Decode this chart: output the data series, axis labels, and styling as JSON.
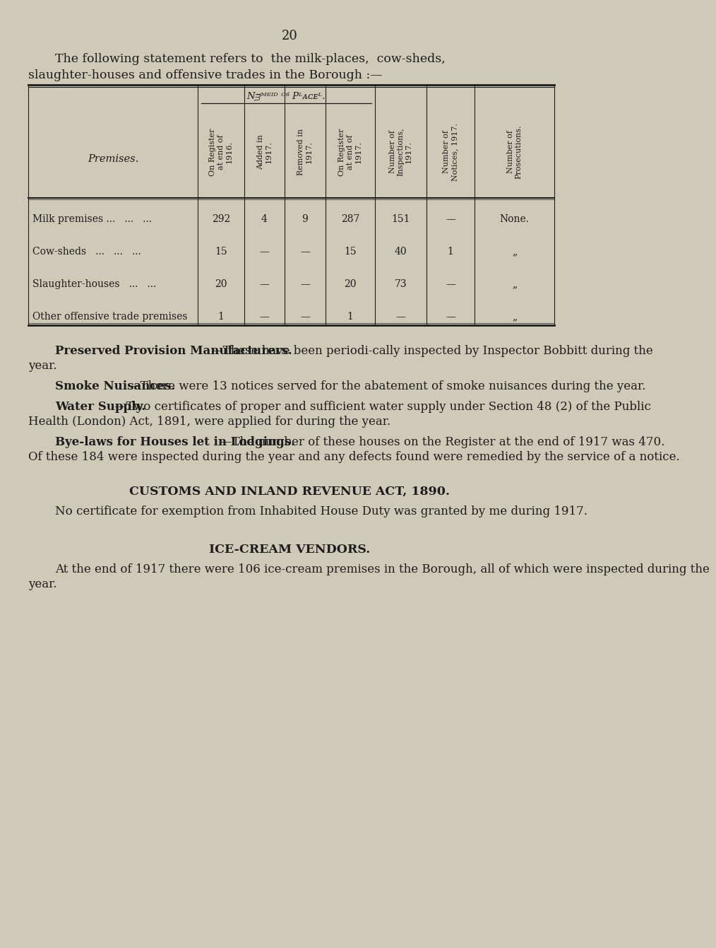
{
  "bg": "#cfc9b8",
  "tc": "#1c1c1c",
  "page_number": "20",
  "intro_line1": "The following statement refers to  the milk-places,  cow-sheds,",
  "intro_line2": "slaughter-houses and offensive trades in the Borough :—",
  "table": {
    "col_header_group": "Number of Places.",
    "col_headers": [
      "On Register\nat end of\n1916.",
      "Added in\n1917.",
      "Removed in\n1917.",
      "On Register\nat end of\n1917.",
      "Number of\nInspections,\n1917.",
      "Number of\nNotices, 1917.",
      "Number of\nProsecutions."
    ],
    "row_header": "Premises.",
    "rows": [
      {
        "label": "Milk premises ...   ...   ...",
        "values": [
          "292",
          "4",
          "9",
          "287",
          "151",
          "—",
          "None."
        ]
      },
      {
        "label": "Cow-sheds   ...   ...   ...",
        "values": [
          "15",
          "—",
          "—",
          "15",
          "40",
          "1",
          "„"
        ]
      },
      {
        "label": "Slaughter-houses   ...   ...",
        "values": [
          "20",
          "—",
          "—",
          "20",
          "73",
          "—",
          "„"
        ]
      },
      {
        "label": "Other offensive trade premises",
        "values": [
          "1",
          "—",
          "—",
          "1",
          "—",
          "—",
          "„"
        ]
      }
    ]
  },
  "paragraphs": [
    {
      "bold": "Preserved Provision Manufacturers.",
      "normal": "—These have been periodi­cally inspected by Inspector Bobbitt during the year."
    },
    {
      "bold": "Smoke Nuisances.",
      "normal": "—There were 13 notices served for the abatement of smoke nuisances during the year."
    },
    {
      "bold": "Water Supply.",
      "normal": "—Two certificates of proper and sufficient water supply under Section 48 (2) of the Public Health (London) Act, 1891, were applied for during the year."
    },
    {
      "bold": "Bye-laws for Houses let in Lodgings.",
      "normal": "—The number of these houses on the Register at the end of 1917 was 470.   Of these 184 were inspected during the year and any defects found were remedied by the service of a notice."
    }
  ],
  "customs_title": "CUSTOMS AND INLAND REVENUE ACT, 1890.",
  "customs_text": "No certificate for exemption from Inhabited House Duty was granted by me during 1917.",
  "icecream_title": "ICE-CREAM VENDORS.",
  "icecream_text": "At the end of 1917 there were 106 ice-cream premises in the Borough, all of which were inspected during the year."
}
